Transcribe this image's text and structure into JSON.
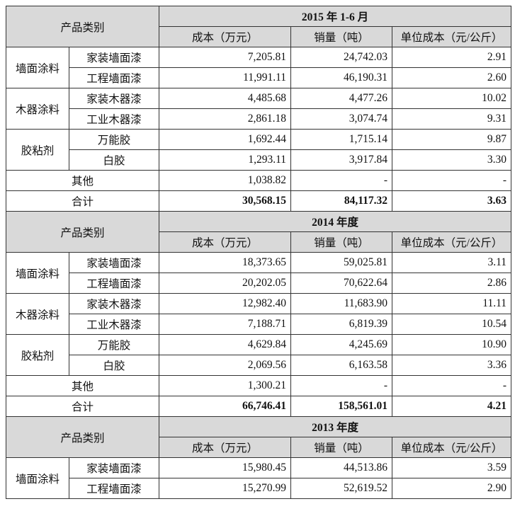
{
  "headers": {
    "category": "产品类别",
    "cost": "成本（万元）",
    "volume": "销量（吨）",
    "unit_cost": "单位成本（元/公斤）"
  },
  "sections": [
    {
      "period": "2015 年 1-6 月",
      "groups": [
        {
          "name": "墙面涂料",
          "items": [
            {
              "product": "家装墙面漆",
              "cost": "7,205.81",
              "volume": "24,742.03",
              "unit_cost": "2.91"
            },
            {
              "product": "工程墙面漆",
              "cost": "11,991.11",
              "volume": "46,190.31",
              "unit_cost": "2.60"
            }
          ]
        },
        {
          "name": "木器涂料",
          "items": [
            {
              "product": "家装木器漆",
              "cost": "4,485.68",
              "volume": "4,477.26",
              "unit_cost": "10.02"
            },
            {
              "product": "工业木器漆",
              "cost": "2,861.18",
              "volume": "3,074.74",
              "unit_cost": "9.31"
            }
          ]
        },
        {
          "name": "胶粘剂",
          "items": [
            {
              "product": "万能胶",
              "cost": "1,692.44",
              "volume": "1,715.14",
              "unit_cost": "9.87"
            },
            {
              "product": "白胶",
              "cost": "1,293.11",
              "volume": "3,917.84",
              "unit_cost": "3.30"
            }
          ]
        }
      ],
      "other": {
        "label": "其他",
        "cost": "1,038.82",
        "volume": "-",
        "unit_cost": "-"
      },
      "total": {
        "label": "合计",
        "cost": "30,568.15",
        "volume": "84,117.32",
        "unit_cost": "3.63"
      }
    },
    {
      "period": "2014 年度",
      "groups": [
        {
          "name": "墙面涂料",
          "items": [
            {
              "product": "家装墙面漆",
              "cost": "18,373.65",
              "volume": "59,025.81",
              "unit_cost": "3.11"
            },
            {
              "product": "工程墙面漆",
              "cost": "20,202.05",
              "volume": "70,622.64",
              "unit_cost": "2.86"
            }
          ]
        },
        {
          "name": "木器涂料",
          "items": [
            {
              "product": "家装木器漆",
              "cost": "12,982.40",
              "volume": "11,683.90",
              "unit_cost": "11.11"
            },
            {
              "product": "工业木器漆",
              "cost": "7,188.71",
              "volume": "6,819.39",
              "unit_cost": "10.54"
            }
          ]
        },
        {
          "name": "胶粘剂",
          "items": [
            {
              "product": "万能胶",
              "cost": "4,629.84",
              "volume": "4,245.69",
              "unit_cost": "10.90"
            },
            {
              "product": "白胶",
              "cost": "2,069.56",
              "volume": "6,163.58",
              "unit_cost": "3.36"
            }
          ]
        }
      ],
      "other": {
        "label": "其他",
        "cost": "1,300.21",
        "volume": "-",
        "unit_cost": "-"
      },
      "total": {
        "label": "合计",
        "cost": "66,746.41",
        "volume": "158,561.01",
        "unit_cost": "4.21"
      }
    },
    {
      "period": "2013 年度",
      "groups": [
        {
          "name": "墙面涂料",
          "items": [
            {
              "product": "家装墙面漆",
              "cost": "15,980.45",
              "volume": "44,513.86",
              "unit_cost": "3.59"
            },
            {
              "product": "工程墙面漆",
              "cost": "15,270.99",
              "volume": "52,619.52",
              "unit_cost": "2.90"
            }
          ]
        }
      ]
    }
  ]
}
